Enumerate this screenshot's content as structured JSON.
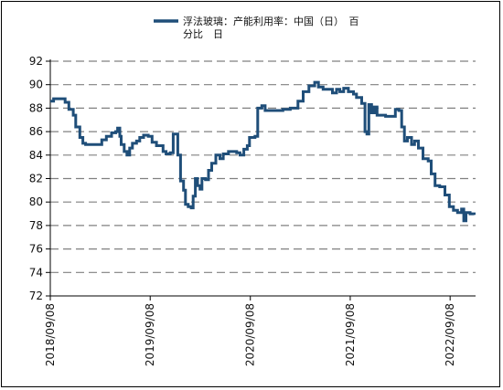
{
  "chart_data": {
    "type": "line",
    "title": "",
    "xlabel": "",
    "ylabel": "",
    "legend": {
      "position": "top-center",
      "entries": [
        {
          "line1": "浮法玻璃：产能利用率：中国（日）　百",
          "line2": "分比　日"
        }
      ]
    },
    "ylim": [
      72,
      92
    ],
    "y_ticks": [
      "72",
      "74",
      "76",
      "78",
      "80",
      "82",
      "84",
      "86",
      "88",
      "90",
      "92"
    ],
    "x_tick_labels": [
      "2018/09/08",
      "2019/09/08",
      "2020/09/08",
      "2021/09/08",
      "2022/09/08"
    ],
    "grid": "horizontal dashed",
    "series": [
      {
        "color": "#1f4e79",
        "points": [
          [
            "2018-09-08",
            88.6
          ],
          [
            "2018-09-20",
            88.8
          ],
          [
            "2018-10-20",
            88.8
          ],
          [
            "2018-11-01",
            88.5
          ],
          [
            "2018-11-15",
            87.9
          ],
          [
            "2018-12-01",
            87.4
          ],
          [
            "2018-12-10",
            86.4
          ],
          [
            "2018-12-25",
            85.5
          ],
          [
            "2019-01-05",
            85.0
          ],
          [
            "2019-01-15",
            84.9
          ],
          [
            "2019-03-05",
            84.9
          ],
          [
            "2019-03-15",
            85.3
          ],
          [
            "2019-04-01",
            85.6
          ],
          [
            "2019-04-20",
            85.9
          ],
          [
            "2019-05-05",
            86.0
          ],
          [
            "2019-05-12",
            86.3
          ],
          [
            "2019-05-20",
            85.6
          ],
          [
            "2019-05-25",
            84.9
          ],
          [
            "2019-06-05",
            84.3
          ],
          [
            "2019-06-15",
            84.0
          ],
          [
            "2019-06-25",
            84.6
          ],
          [
            "2019-07-05",
            85.0
          ],
          [
            "2019-07-20",
            85.2
          ],
          [
            "2019-08-01",
            85.5
          ],
          [
            "2019-08-15",
            85.7
          ],
          [
            "2019-09-01",
            85.6
          ],
          [
            "2019-09-15",
            85.1
          ],
          [
            "2019-10-01",
            84.8
          ],
          [
            "2019-10-20",
            84.8
          ],
          [
            "2019-10-25",
            84.3
          ],
          [
            "2019-11-05",
            84.1
          ],
          [
            "2019-11-20",
            84.2
          ],
          [
            "2019-12-01",
            85.8
          ],
          [
            "2019-12-12",
            85.8
          ],
          [
            "2019-12-18",
            84.0
          ],
          [
            "2019-12-28",
            81.8
          ],
          [
            "2020-01-08",
            81.0
          ],
          [
            "2020-01-15",
            79.8
          ],
          [
            "2020-01-25",
            79.6
          ],
          [
            "2020-02-05",
            79.5
          ],
          [
            "2020-02-12",
            80.5
          ],
          [
            "2020-02-20",
            82.0
          ],
          [
            "2020-02-28",
            81.4
          ],
          [
            "2020-03-08",
            81.1
          ],
          [
            "2020-03-15",
            82.0
          ],
          [
            "2020-03-28",
            81.9
          ],
          [
            "2020-04-08",
            82.7
          ],
          [
            "2020-04-20",
            83.3
          ],
          [
            "2020-05-05",
            84.0
          ],
          [
            "2020-05-20",
            83.7
          ],
          [
            "2020-06-01",
            84.1
          ],
          [
            "2020-06-20",
            84.3
          ],
          [
            "2020-07-05",
            84.3
          ],
          [
            "2020-07-20",
            84.2
          ],
          [
            "2020-08-01",
            84.0
          ],
          [
            "2020-08-15",
            84.5
          ],
          [
            "2020-08-28",
            84.8
          ],
          [
            "2020-09-05",
            85.5
          ],
          [
            "2020-09-25",
            85.6
          ],
          [
            "2020-10-05",
            88.0
          ],
          [
            "2020-10-20",
            88.2
          ],
          [
            "2020-11-01",
            87.8
          ],
          [
            "2020-12-15",
            87.8
          ],
          [
            "2021-01-05",
            87.9
          ],
          [
            "2021-02-01",
            88.0
          ],
          [
            "2021-03-01",
            88.6
          ],
          [
            "2021-03-20",
            89.4
          ],
          [
            "2021-04-10",
            89.9
          ],
          [
            "2021-05-01",
            90.2
          ],
          [
            "2021-05-15",
            89.8
          ],
          [
            "2021-06-01",
            89.6
          ],
          [
            "2021-06-20",
            89.6
          ],
          [
            "2021-07-05",
            89.3
          ],
          [
            "2021-07-20",
            89.6
          ],
          [
            "2021-08-01",
            89.4
          ],
          [
            "2021-08-15",
            89.7
          ],
          [
            "2021-09-01",
            89.4
          ],
          [
            "2021-09-20",
            89.2
          ],
          [
            "2021-10-01",
            88.9
          ],
          [
            "2021-10-20",
            88.4
          ],
          [
            "2021-11-01",
            86.0
          ],
          [
            "2021-11-08",
            85.8
          ],
          [
            "2021-11-15",
            88.3
          ],
          [
            "2021-11-25",
            87.6
          ],
          [
            "2021-12-05",
            88.1
          ],
          [
            "2021-12-15",
            87.4
          ],
          [
            "2022-01-15",
            87.3
          ],
          [
            "2022-02-10",
            87.3
          ],
          [
            "2022-02-20",
            87.9
          ],
          [
            "2022-03-05",
            87.8
          ],
          [
            "2022-03-15",
            86.4
          ],
          [
            "2022-03-25",
            85.2
          ],
          [
            "2022-04-05",
            85.5
          ],
          [
            "2022-04-20",
            84.9
          ],
          [
            "2022-05-01",
            85.2
          ],
          [
            "2022-05-15",
            84.6
          ],
          [
            "2022-06-01",
            83.7
          ],
          [
            "2022-06-20",
            83.5
          ],
          [
            "2022-07-01",
            82.4
          ],
          [
            "2022-07-15",
            81.4
          ],
          [
            "2022-08-01",
            81.3
          ],
          [
            "2022-08-20",
            80.6
          ],
          [
            "2022-09-05",
            79.6
          ],
          [
            "2022-09-20",
            79.3
          ],
          [
            "2022-10-05",
            79.1
          ],
          [
            "2022-10-20",
            79.4
          ],
          [
            "2022-10-28",
            78.4
          ],
          [
            "2022-11-05",
            79.1
          ],
          [
            "2022-11-20",
            79.0
          ],
          [
            "2022-12-05",
            78.9
          ]
        ]
      }
    ]
  }
}
